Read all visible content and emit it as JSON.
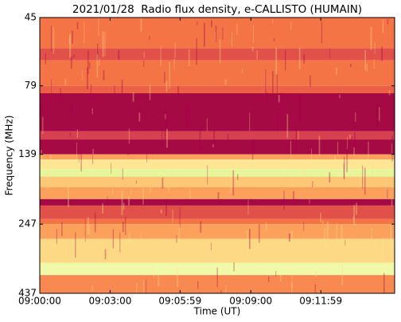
{
  "chart_data": {
    "type": "spectrogram",
    "title": "2021/01/28  Radio flux density, e-CALLISTO (HUMAIN)",
    "xlabel": "Time (UT)",
    "ylabel": "Frequency (MHz)",
    "xlim": [
      32400,
      33308
    ],
    "xticks": [
      {
        "value": 32400,
        "label": "09:00:00"
      },
      {
        "value": 32580,
        "label": "09:03:00"
      },
      {
        "value": 32759,
        "label": "09:05:59"
      },
      {
        "value": 32940,
        "label": "09:09:00"
      },
      {
        "value": 33119,
        "label": "09:11:59"
      }
    ],
    "ylim": [
      45,
      437
    ],
    "yticks": [
      45,
      79,
      139,
      247,
      437
    ],
    "ylog": true,
    "yinverted": true,
    "colormap": [
      "#9e0142",
      "#d53e4f",
      "#f46d43",
      "#fdae61",
      "#fee08b",
      "#ffffbf",
      "#e6f598",
      "#abdda4"
    ],
    "bands": [
      {
        "from": 45,
        "to": 58,
        "level": 0.3
      },
      {
        "from": 58,
        "to": 64,
        "level": 0.2
      },
      {
        "from": 64,
        "to": 79,
        "level": 0.3
      },
      {
        "from": 79,
        "to": 84,
        "level": 0.25
      },
      {
        "from": 84,
        "to": 115,
        "level": 0.02
      },
      {
        "from": 115,
        "to": 123,
        "level": 0.15
      },
      {
        "from": 123,
        "to": 139,
        "level": 0.02
      },
      {
        "from": 139,
        "to": 145,
        "level": 0.4
      },
      {
        "from": 145,
        "to": 157,
        "level": 0.6
      },
      {
        "from": 157,
        "to": 167,
        "level": 0.85
      },
      {
        "from": 167,
        "to": 182,
        "level": 0.5
      },
      {
        "from": 182,
        "to": 201,
        "level": 0.4
      },
      {
        "from": 201,
        "to": 212,
        "level": 0.02
      },
      {
        "from": 212,
        "to": 237,
        "level": 0.2
      },
      {
        "from": 237,
        "to": 247,
        "level": 0.3
      },
      {
        "from": 247,
        "to": 279,
        "level": 0.4
      },
      {
        "from": 279,
        "to": 340,
        "level": 0.55
      },
      {
        "from": 340,
        "to": 376,
        "level": 0.8
      },
      {
        "from": 376,
        "to": 437,
        "level": 0.35
      }
    ]
  }
}
